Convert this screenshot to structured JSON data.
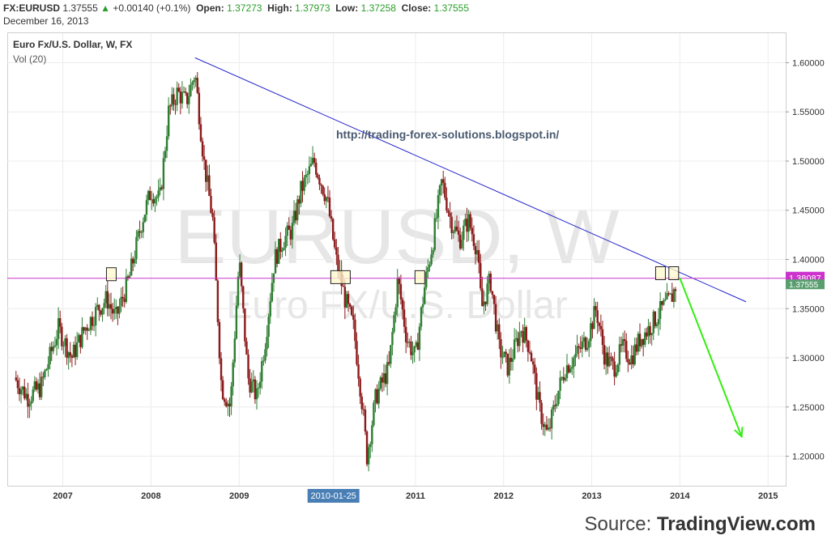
{
  "header": {
    "symbol": "FX:EURUSD",
    "last": "1.37555",
    "change": "+0.00140 (+0.1%)",
    "open_label": "Open:",
    "open": "1.37273",
    "high_label": "High:",
    "high": "1.37973",
    "low_label": "Low:",
    "low": "1.37258",
    "close_label": "Close:",
    "close": "1.37555",
    "date": "December 16, 2013"
  },
  "chart_title": "Euro Fx/U.S. Dollar, W, FX",
  "volume_label": "Vol (20)",
  "watermark": {
    "symbol": "EURUSD, W",
    "name": "Euro FX/U.S. Dollar"
  },
  "annotation_url": "http://trading-forex-solutions.blogspot.in/",
  "cursor_date_label": "2010-01-25",
  "source": {
    "prefix": "Source:",
    "brand": "TradingView.com"
  },
  "colors": {
    "up": "#2e7d32",
    "down": "#8b1a1a",
    "trendline": "#2222cc",
    "horizontal": "#cc33cc",
    "projection": "#33ee11"
  },
  "chart_data": {
    "type": "candlestick",
    "x_ticks": [
      "2007",
      "2008",
      "2009",
      "2010-01-25",
      "2011",
      "2012",
      "2013",
      "2014",
      "2015"
    ],
    "y_ticks": [
      "1.20000",
      "1.25000",
      "1.30000",
      "1.35000",
      "1.40000",
      "1.45000",
      "1.50000",
      "1.55000",
      "1.60000"
    ],
    "ylim": [
      1.17,
      1.63
    ],
    "price_labels": {
      "horizontal_level": "1.38087",
      "last": "1.37555"
    },
    "path": [
      [
        2006.45,
        1.28
      ],
      [
        2006.6,
        1.26
      ],
      [
        2006.75,
        1.27
      ],
      [
        2006.95,
        1.33
      ],
      [
        2007.1,
        1.3
      ],
      [
        2007.25,
        1.33
      ],
      [
        2007.4,
        1.35
      ],
      [
        2007.5,
        1.36
      ],
      [
        2007.6,
        1.34
      ],
      [
        2007.75,
        1.38
      ],
      [
        2007.9,
        1.44
      ],
      [
        2008.0,
        1.47
      ],
      [
        2008.1,
        1.46
      ],
      [
        2008.2,
        1.55
      ],
      [
        2008.3,
        1.57
      ],
      [
        2008.4,
        1.56
      ],
      [
        2008.5,
        1.59
      ],
      [
        2008.6,
        1.5
      ],
      [
        2008.7,
        1.44
      ],
      [
        2008.8,
        1.27
      ],
      [
        2008.9,
        1.25
      ],
      [
        2009.0,
        1.4
      ],
      [
        2009.1,
        1.28
      ],
      [
        2009.2,
        1.26
      ],
      [
        2009.3,
        1.32
      ],
      [
        2009.4,
        1.4
      ],
      [
        2009.5,
        1.42
      ],
      [
        2009.6,
        1.43
      ],
      [
        2009.7,
        1.47
      ],
      [
        2009.85,
        1.5
      ],
      [
        2010.0,
        1.46
      ],
      [
        2010.1,
        1.4
      ],
      [
        2010.2,
        1.36
      ],
      [
        2010.3,
        1.33
      ],
      [
        2010.4,
        1.25
      ],
      [
        2010.45,
        1.2
      ],
      [
        2010.55,
        1.26
      ],
      [
        2010.7,
        1.29
      ],
      [
        2010.8,
        1.38
      ],
      [
        2010.9,
        1.32
      ],
      [
        2011.0,
        1.3
      ],
      [
        2011.1,
        1.37
      ],
      [
        2011.2,
        1.42
      ],
      [
        2011.3,
        1.48
      ],
      [
        2011.4,
        1.44
      ],
      [
        2011.5,
        1.42
      ],
      [
        2011.6,
        1.44
      ],
      [
        2011.7,
        1.41
      ],
      [
        2011.75,
        1.35
      ],
      [
        2011.85,
        1.38
      ],
      [
        2011.95,
        1.31
      ],
      [
        2012.05,
        1.29
      ],
      [
        2012.2,
        1.33
      ],
      [
        2012.3,
        1.31
      ],
      [
        2012.4,
        1.25
      ],
      [
        2012.5,
        1.22
      ],
      [
        2012.6,
        1.26
      ],
      [
        2012.7,
        1.29
      ],
      [
        2012.8,
        1.3
      ],
      [
        2012.95,
        1.32
      ],
      [
        2013.05,
        1.35
      ],
      [
        2013.15,
        1.3
      ],
      [
        2013.25,
        1.29
      ],
      [
        2013.35,
        1.31
      ],
      [
        2013.45,
        1.3
      ],
      [
        2013.55,
        1.32
      ],
      [
        2013.65,
        1.33
      ],
      [
        2013.8,
        1.35
      ],
      [
        2013.9,
        1.36
      ],
      [
        2013.96,
        1.3756
      ]
    ],
    "trendline": {
      "start": [
        2008.5,
        1.605
      ],
      "end": [
        2014.75,
        1.357
      ]
    },
    "horizontal_level": 1.38087,
    "projection_arrow": {
      "start": [
        2014.0,
        1.381
      ],
      "end": [
        2014.7,
        1.22
      ]
    },
    "marked_boxes": [
      [
        2007.55,
        1.385
      ],
      [
        2010.15,
        1.382
      ],
      [
        2011.05,
        1.382
      ],
      [
        2013.78,
        1.386
      ],
      [
        2013.93,
        1.386
      ]
    ]
  }
}
